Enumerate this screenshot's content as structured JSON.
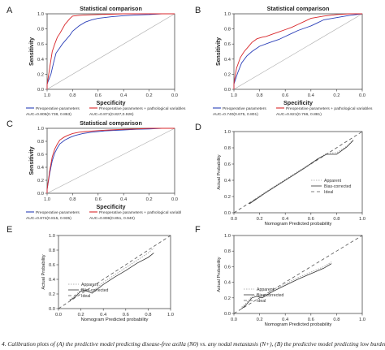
{
  "caption": "4. Calibration plots of (A) the predictive model predicting disease-free axilla (N0) vs. any nodal metastasis (N+), (B) the predictive model predicting low burden o",
  "chart_data": [
    {
      "panel": "A",
      "type": "line",
      "title": "Statistical comparison",
      "xlabel": "Specificity",
      "ylabel": "Sensitivity",
      "xlim": [
        1.0,
        0.0
      ],
      "ylim": [
        0.0,
        1.0
      ],
      "x_ticks": [
        "1.0",
        "0.8",
        "0.6",
        "0.4",
        "0.2",
        "0.0"
      ],
      "y_ticks": [
        "0.0",
        "0.2",
        "0.4",
        "0.6",
        "0.8",
        "1.0"
      ],
      "grid": false,
      "legend_position": "bottom-left",
      "reference_line": true,
      "legend": [
        "Preoperative parameters",
        "Preoperative parameters + pathological variables"
      ],
      "auc_labels": [
        "AUC=0.805(0.738, 0.863)",
        "AUC=0.871(0.827,0.926)"
      ],
      "series": [
        {
          "name": "Preoperative parameters",
          "color": "#2b3fb8",
          "x": [
            1.0,
            1.0,
            0.97,
            0.95,
            0.93,
            0.9,
            0.88,
            0.85,
            0.82,
            0.8,
            0.75,
            0.7,
            0.65,
            0.6,
            0.5,
            0.4,
            0.3,
            0.2,
            0.1,
            0.0
          ],
          "y": [
            0.0,
            0.07,
            0.2,
            0.35,
            0.48,
            0.55,
            0.6,
            0.66,
            0.72,
            0.77,
            0.84,
            0.89,
            0.92,
            0.94,
            0.96,
            0.975,
            0.985,
            0.99,
            1.0,
            1.0
          ]
        },
        {
          "name": "Preoperative parameters + pathological variables",
          "color": "#d8262a",
          "x": [
            1.0,
            1.0,
            0.98,
            0.96,
            0.94,
            0.92,
            0.9,
            0.88,
            0.86,
            0.84,
            0.82,
            0.8,
            0.75,
            0.7,
            0.6,
            0.5,
            0.4,
            0.3,
            0.2,
            0.1,
            0.0
          ],
          "y": [
            0.0,
            0.06,
            0.28,
            0.5,
            0.6,
            0.69,
            0.74,
            0.8,
            0.86,
            0.9,
            0.94,
            0.97,
            0.98,
            0.985,
            0.99,
            0.995,
            1.0,
            1.0,
            1.0,
            1.0,
            1.0
          ]
        }
      ]
    },
    {
      "panel": "B",
      "type": "line",
      "title": "Statistical comparison",
      "xlabel": "Specificity",
      "ylabel": "Sensitivity",
      "xlim": [
        1.0,
        0.0
      ],
      "ylim": [
        0.0,
        1.0
      ],
      "x_ticks": [
        "1.0",
        "0.8",
        "0.6",
        "0.4",
        "0.2",
        "0.0"
      ],
      "y_ticks": [
        "0.0",
        "0.2",
        "0.4",
        "0.6",
        "0.8",
        "1.0"
      ],
      "grid": false,
      "legend_position": "bottom-left",
      "reference_line": true,
      "legend": [
        "Preoperative parameters",
        "Preoperative parameters + pathological variables"
      ],
      "auc_labels": [
        "AUC=0.740(0.675, 0.801)",
        "AUC=0.821(0.766, 0.881)"
      ],
      "series": [
        {
          "name": "Preoperative parameters",
          "color": "#2b3fb8",
          "x": [
            1.0,
            1.0,
            0.97,
            0.94,
            0.9,
            0.86,
            0.8,
            0.72,
            0.65,
            0.6,
            0.55,
            0.5,
            0.4,
            0.35,
            0.3,
            0.2,
            0.1,
            0.0
          ],
          "y": [
            0.0,
            0.07,
            0.22,
            0.35,
            0.44,
            0.5,
            0.57,
            0.62,
            0.66,
            0.7,
            0.74,
            0.78,
            0.84,
            0.88,
            0.92,
            0.95,
            0.98,
            1.0
          ]
        },
        {
          "name": "Preoperative parameters + pathological variables",
          "color": "#d8262a",
          "x": [
            1.0,
            1.0,
            0.98,
            0.95,
            0.92,
            0.89,
            0.86,
            0.82,
            0.78,
            0.75,
            0.7,
            0.65,
            0.6,
            0.55,
            0.5,
            0.45,
            0.4,
            0.3,
            0.2,
            0.1,
            0.0
          ],
          "y": [
            0.0,
            0.08,
            0.28,
            0.42,
            0.5,
            0.56,
            0.62,
            0.67,
            0.69,
            0.7,
            0.73,
            0.76,
            0.79,
            0.82,
            0.86,
            0.9,
            0.94,
            0.97,
            0.99,
            1.0,
            1.0
          ]
        }
      ]
    },
    {
      "panel": "C",
      "type": "line",
      "title": "Statistical comparison",
      "xlabel": "Specificity",
      "ylabel": "Sensitivity",
      "xlim": [
        1.0,
        0.0
      ],
      "ylim": [
        0.0,
        1.0
      ],
      "x_ticks": [
        "1.0",
        "0.8",
        "0.6",
        "0.4",
        "0.2",
        "0.0"
      ],
      "y_ticks": [
        "0.0",
        "0.2",
        "0.4",
        "0.6",
        "0.8",
        "1.0"
      ],
      "grid": false,
      "legend_position": "bottom-left",
      "reference_line": true,
      "legend": [
        "Preoperative parameters",
        "Preoperative parameters + pathological variabl"
      ],
      "auc_labels": [
        "AUC=0.874(0.815, 0.935)",
        "AUC=0.896(0.851, 0.940)"
      ],
      "series": [
        {
          "name": "Preoperative parameters",
          "color": "#2b3fb8",
          "x": [
            1.0,
            1.0,
            0.98,
            0.96,
            0.94,
            0.92,
            0.9,
            0.86,
            0.82,
            0.78,
            0.72,
            0.65,
            0.55,
            0.4,
            0.3,
            0.2,
            0.1,
            0.0
          ],
          "y": [
            0.0,
            0.06,
            0.3,
            0.5,
            0.62,
            0.7,
            0.76,
            0.82,
            0.86,
            0.89,
            0.92,
            0.94,
            0.96,
            0.975,
            0.985,
            0.99,
            1.0,
            1.0
          ]
        },
        {
          "name": "Preoperative parameters + pathological variabl",
          "color": "#d8262a",
          "x": [
            1.0,
            1.0,
            0.98,
            0.96,
            0.94,
            0.92,
            0.9,
            0.87,
            0.84,
            0.8,
            0.75,
            0.7,
            0.6,
            0.5,
            0.4,
            0.3,
            0.2,
            0.1,
            0.0
          ],
          "y": [
            0.0,
            0.06,
            0.34,
            0.56,
            0.68,
            0.76,
            0.82,
            0.86,
            0.89,
            0.92,
            0.94,
            0.95,
            0.965,
            0.975,
            0.985,
            0.99,
            1.0,
            1.0,
            1.0
          ]
        }
      ]
    },
    {
      "panel": "D",
      "type": "line",
      "title": "",
      "xlabel": "Nomogram Predicted probability",
      "ylabel": "Actual Probability",
      "xlim": [
        0.0,
        1.0
      ],
      "ylim": [
        0.0,
        1.0
      ],
      "x_ticks": [
        "0.0",
        "0.2",
        "0.4",
        "0.6",
        "0.8",
        "1.0"
      ],
      "y_ticks": [
        "0.0",
        "0.2",
        "0.4",
        "0.6",
        "0.8",
        "1.0"
      ],
      "grid": false,
      "legend_position": "right",
      "series": [
        {
          "name": "Apparent",
          "color": "#9a9a9a",
          "dash": "1.5,1.5",
          "x": [
            0.12,
            0.25,
            0.4,
            0.55,
            0.65,
            0.72,
            0.8,
            0.88,
            0.93
          ],
          "y": [
            0.12,
            0.26,
            0.41,
            0.56,
            0.66,
            0.73,
            0.74,
            0.82,
            0.9
          ]
        },
        {
          "name": "Bias-corrected",
          "color": "#333333",
          "dash": "",
          "x": [
            0.12,
            0.25,
            0.4,
            0.55,
            0.65,
            0.72,
            0.8,
            0.88,
            0.93
          ],
          "y": [
            0.11,
            0.25,
            0.4,
            0.55,
            0.66,
            0.72,
            0.72,
            0.81,
            0.89
          ]
        },
        {
          "name": "Ideal",
          "color": "#555555",
          "dash": "4,3",
          "x": [
            0.0,
            1.0
          ],
          "y": [
            0.0,
            1.0
          ]
        }
      ]
    },
    {
      "panel": "E",
      "type": "line",
      "title": "",
      "xlabel": "Nomogram Predicted probability",
      "ylabel": "Actual Probability",
      "xlim": [
        0.0,
        1.0
      ],
      "ylim": [
        0.0,
        1.0
      ],
      "x_ticks": [
        "0.0",
        "0.2",
        "0.4",
        "0.6",
        "0.8",
        "1.0"
      ],
      "y_ticks": [
        "0.0",
        "0.2",
        "0.4",
        "0.6",
        "0.8",
        "1.0"
      ],
      "grid": false,
      "legend_position": "bottom-left",
      "series": [
        {
          "name": "Apparent",
          "color": "#9a9a9a",
          "dash": "1.5,1.5",
          "x": [
            0.1,
            0.15,
            0.2,
            0.24,
            0.3,
            0.4,
            0.5,
            0.6,
            0.7,
            0.8,
            0.85
          ],
          "y": [
            0.12,
            0.18,
            0.26,
            0.27,
            0.23,
            0.36,
            0.46,
            0.56,
            0.66,
            0.76,
            0.83
          ]
        },
        {
          "name": "Bias-corrected",
          "color": "#333333",
          "dash": "",
          "x": [
            0.1,
            0.15,
            0.2,
            0.24,
            0.3,
            0.4,
            0.5,
            0.6,
            0.7,
            0.8,
            0.85
          ],
          "y": [
            0.11,
            0.16,
            0.24,
            0.25,
            0.21,
            0.33,
            0.43,
            0.52,
            0.62,
            0.7,
            0.76
          ]
        },
        {
          "name": "Ideal",
          "color": "#555555",
          "dash": "4,3",
          "x": [
            0.0,
            1.0
          ],
          "y": [
            0.0,
            1.0
          ]
        }
      ]
    },
    {
      "panel": "F",
      "type": "line",
      "title": "",
      "xlabel": "Nomogram Predicted probability",
      "ylabel": "Actual Probability",
      "xlim": [
        0.0,
        1.0
      ],
      "ylim": [
        0.0,
        1.0
      ],
      "x_ticks": [
        "0.0",
        "0.2",
        "0.4",
        "0.6",
        "0.8",
        "1.0"
      ],
      "y_ticks": [
        "0.0",
        "0.2",
        "0.4",
        "0.6",
        "0.8",
        "1.0"
      ],
      "grid": false,
      "legend_position": "bottom-left",
      "series": [
        {
          "name": "Apparent",
          "color": "#9a9a9a",
          "dash": "1.5,1.5",
          "x": [
            0.06,
            0.1,
            0.14,
            0.18,
            0.22,
            0.3,
            0.4,
            0.5,
            0.6,
            0.7,
            0.76
          ],
          "y": [
            0.08,
            0.14,
            0.22,
            0.24,
            0.22,
            0.3,
            0.38,
            0.46,
            0.53,
            0.6,
            0.66
          ]
        },
        {
          "name": "Bias-corrected",
          "color": "#333333",
          "dash": "",
          "x": [
            0.06,
            0.1,
            0.14,
            0.18,
            0.22,
            0.3,
            0.4,
            0.5,
            0.6,
            0.7,
            0.76
          ],
          "y": [
            0.06,
            0.12,
            0.2,
            0.22,
            0.2,
            0.28,
            0.36,
            0.44,
            0.51,
            0.58,
            0.64
          ]
        },
        {
          "name": "Ideal",
          "color": "#555555",
          "dash": "4,3",
          "x": [
            0.0,
            1.0
          ],
          "y": [
            0.0,
            1.0
          ]
        }
      ]
    }
  ]
}
